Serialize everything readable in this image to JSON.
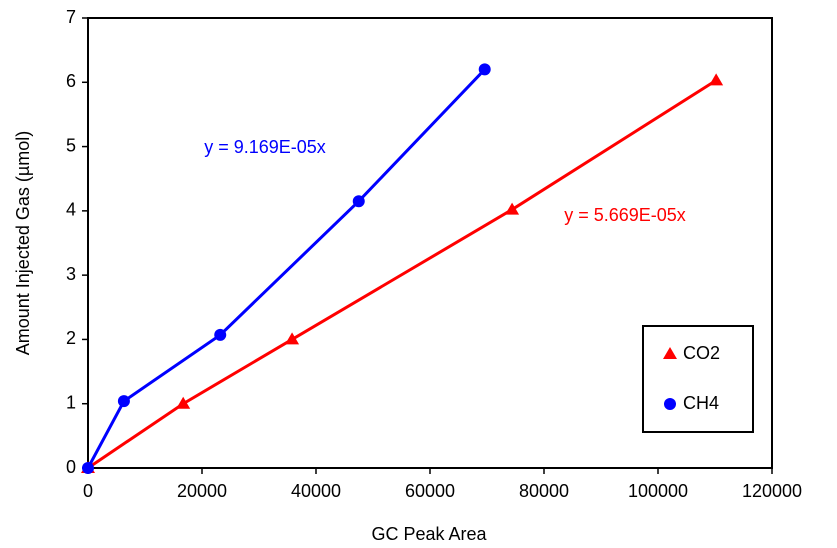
{
  "chart_data": {
    "type": "scatter",
    "x_label": "GC Peak Area",
    "y_label": "Amount Injected Gas (µmol)",
    "xlim": [
      0,
      120000
    ],
    "ylim": [
      0,
      7
    ],
    "xticks": [
      0,
      20000,
      40000,
      60000,
      80000,
      100000,
      120000
    ],
    "yticks": [
      0,
      1,
      2,
      3,
      4,
      5,
      6,
      7
    ],
    "connect": true,
    "series": [
      {
        "name": "CO2",
        "color": "#ff0000",
        "marker": "triangle",
        "x": [
          0,
          16700,
          35800,
          74400,
          110200
        ],
        "values": [
          0,
          1.0,
          2.0,
          4.02,
          6.03
        ]
      },
      {
        "name": "CH4",
        "color": "#0000ff",
        "marker": "circle",
        "x": [
          0,
          6300,
          23200,
          47500,
          69600
        ],
        "values": [
          0,
          1.04,
          2.07,
          4.15,
          6.2
        ]
      }
    ],
    "annotations": [
      {
        "text": "y = 9.169E-05x",
        "color": "#0000ff"
      },
      {
        "text": "y = 5.669E-05x",
        "color": "#ff0000"
      }
    ],
    "legend": "lower-right"
  }
}
